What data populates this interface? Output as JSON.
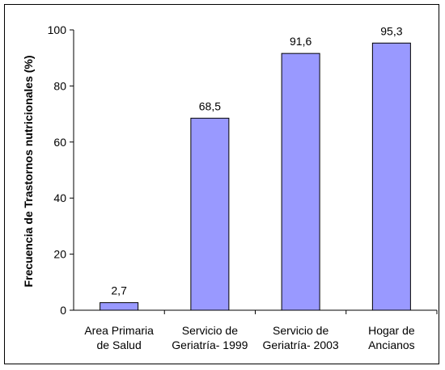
{
  "chart_data": {
    "type": "bar",
    "ylabel": "Frecuencia de Trastornos nutricionales (%)",
    "xlabel": "",
    "ylim": [
      0,
      100
    ],
    "yticks": [
      "0",
      "20",
      "40",
      "60",
      "80",
      "100"
    ],
    "categories": [
      [
        "Area Primaria",
        "de Salud"
      ],
      [
        "Servicio de",
        "Geriatría- 1999"
      ],
      [
        "Servicio de",
        "Geriatría- 2003"
      ],
      [
        "Hogar de",
        "Ancianos"
      ]
    ],
    "values": [
      2.7,
      68.5,
      91.6,
      95.3
    ],
    "data_labels": [
      "2,7",
      "68,5",
      "91,6",
      "95,3"
    ],
    "bar_color": "#9999ff",
    "grid": false,
    "legend": "none"
  }
}
